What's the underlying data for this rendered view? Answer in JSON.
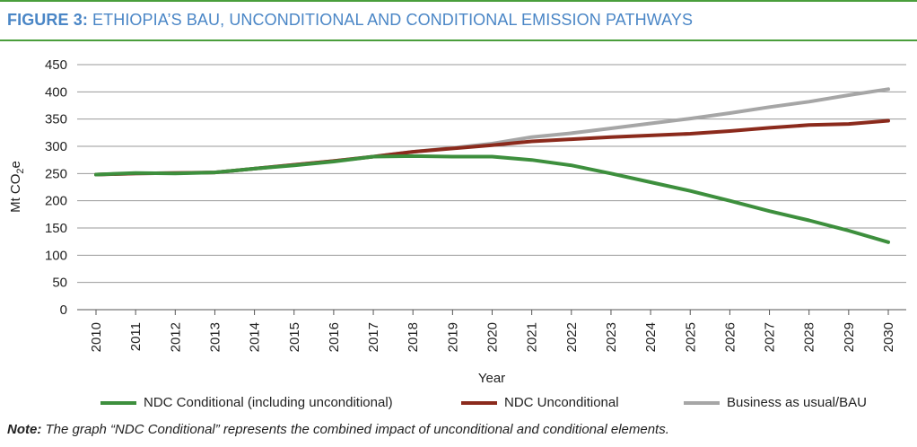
{
  "figure": {
    "number_label": "FIGURE 3:",
    "title": "ETHIOPIA’S BAU, UNCONDITIONAL AND CONDITIONAL EMISSION PATHWAYS"
  },
  "chart_data": {
    "type": "line",
    "xlabel": "Year",
    "ylabel": "Mt CO",
    "ylabel_subscript": "2",
    "ylabel_suffix": "e",
    "ylim": [
      0,
      450
    ],
    "yticks": [
      0,
      50,
      100,
      150,
      200,
      250,
      300,
      350,
      400,
      450
    ],
    "grid": true,
    "legend_position": "bottom",
    "x": [
      "2010",
      "2011",
      "2012",
      "2013",
      "2014",
      "2015",
      "2016",
      "2017",
      "2018",
      "2019",
      "2020",
      "2021",
      "2022",
      "2023",
      "2024",
      "2025",
      "2026",
      "2027",
      "2028",
      "2029",
      "2030"
    ],
    "series": [
      {
        "name": "NDC Conditional (including unconditional)",
        "color": "#3d8f3d",
        "values": [
          248,
          251,
          250,
          252,
          259,
          265,
          272,
          281,
          282,
          281,
          281,
          275,
          265,
          250,
          234,
          218,
          200,
          181,
          164,
          145,
          124
        ]
      },
      {
        "name": "NDC Unconditional",
        "color": "#8b2a1c",
        "values": [
          248,
          250,
          251,
          252,
          259,
          266,
          273,
          281,
          290,
          296,
          302,
          309,
          313,
          317,
          320,
          323,
          328,
          334,
          339,
          341,
          347
        ]
      },
      {
        "name": "Business as usual/BAU",
        "color": "#a6a6a6",
        "values": [
          248,
          250,
          251,
          252,
          259,
          266,
          273,
          281,
          290,
          297,
          305,
          317,
          324,
          333,
          342,
          351,
          361,
          372,
          382,
          394,
          405
        ]
      }
    ]
  },
  "note": {
    "label": "Note:",
    "text": " The graph “NDC Conditional” represents the combined impact of unconditional and conditional elements."
  }
}
